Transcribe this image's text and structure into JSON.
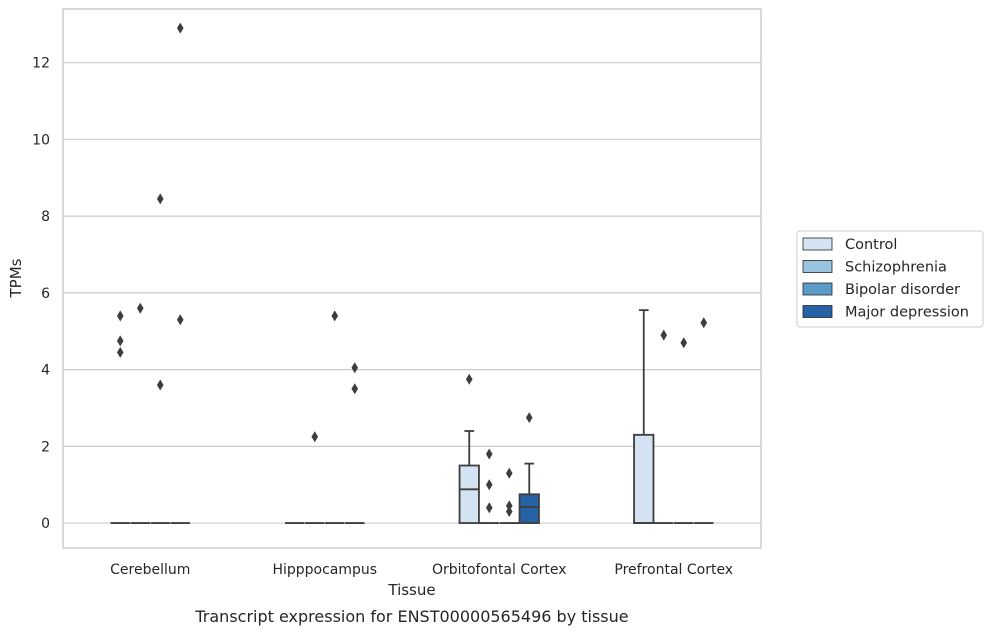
{
  "caption": "Transcript expression for ENST00000565496 by tissue",
  "chart_data": {
    "type": "box",
    "xlabel": "Tissue",
    "ylabel": "TPMs",
    "ylim": [
      -0.65,
      13.4
    ],
    "yticks": [
      0,
      2,
      4,
      6,
      8,
      10,
      12
    ],
    "grid": "horizontal",
    "legend_position": "outside-right",
    "categories": [
      "Cerebellum",
      "Hipppocampus",
      "Orbitofontal Cortex",
      "Prefrontal Cortex"
    ],
    "series": [
      {
        "name": "Control",
        "color": "#d4e3f1"
      },
      {
        "name": "Schizophrenia",
        "color": "#9ac3de"
      },
      {
        "name": "Bipolar disorder",
        "color": "#5a9bc8"
      },
      {
        "name": "Major depression",
        "color": "#2563a6"
      }
    ],
    "boxes": [
      {
        "category": "Cerebellum",
        "series": "Control",
        "q1": 0,
        "median": 0,
        "q3": 0,
        "whislo": 0,
        "whishi": 0,
        "fliers": [
          5.4,
          4.75,
          4.45
        ]
      },
      {
        "category": "Cerebellum",
        "series": "Schizophrenia",
        "q1": 0,
        "median": 0,
        "q3": 0,
        "whislo": 0,
        "whishi": 0,
        "fliers": [
          5.6
        ]
      },
      {
        "category": "Cerebellum",
        "series": "Bipolar disorder",
        "q1": 0,
        "median": 0,
        "q3": 0,
        "whislo": 0,
        "whishi": 0,
        "fliers": [
          8.45,
          3.6
        ]
      },
      {
        "category": "Cerebellum",
        "series": "Major depression",
        "q1": 0,
        "median": 0,
        "q3": 0,
        "whislo": 0,
        "whishi": 0,
        "fliers": [
          12.9,
          5.3
        ]
      },
      {
        "category": "Hipppocampus",
        "series": "Control",
        "q1": 0,
        "median": 0,
        "q3": 0,
        "whislo": 0,
        "whishi": 0,
        "fliers": []
      },
      {
        "category": "Hipppocampus",
        "series": "Schizophrenia",
        "q1": 0,
        "median": 0,
        "q3": 0,
        "whislo": 0,
        "whishi": 0,
        "fliers": [
          2.25
        ]
      },
      {
        "category": "Hipppocampus",
        "series": "Bipolar disorder",
        "q1": 0,
        "median": 0,
        "q3": 0,
        "whislo": 0,
        "whishi": 0,
        "fliers": [
          5.4
        ]
      },
      {
        "category": "Hipppocampus",
        "series": "Major depression",
        "q1": 0,
        "median": 0,
        "q3": 0,
        "whislo": 0,
        "whishi": 0,
        "fliers": [
          4.05,
          3.5
        ]
      },
      {
        "category": "Orbitofontal Cortex",
        "series": "Control",
        "q1": 0,
        "median": 0.88,
        "q3": 1.5,
        "whislo": 0,
        "whishi": 2.4,
        "fliers": [
          3.75
        ]
      },
      {
        "category": "Orbitofontal Cortex",
        "series": "Schizophrenia",
        "q1": 0,
        "median": 0,
        "q3": 0,
        "whislo": 0,
        "whishi": 0,
        "fliers": [
          1.8,
          1.0,
          0.4
        ]
      },
      {
        "category": "Orbitofontal Cortex",
        "series": "Bipolar disorder",
        "q1": 0,
        "median": 0,
        "q3": 0,
        "whislo": 0,
        "whishi": 0,
        "fliers": [
          1.3,
          0.45,
          0.3
        ]
      },
      {
        "category": "Orbitofontal Cortex",
        "series": "Major depression",
        "q1": 0,
        "median": 0.42,
        "q3": 0.75,
        "whislo": 0,
        "whishi": 1.55,
        "fliers": [
          2.75
        ]
      },
      {
        "category": "Prefrontal Cortex",
        "series": "Control",
        "q1": 0,
        "median": 0,
        "q3": 2.3,
        "whislo": 0,
        "whishi": 5.55,
        "fliers": []
      },
      {
        "category": "Prefrontal Cortex",
        "series": "Schizophrenia",
        "q1": 0,
        "median": 0,
        "q3": 0,
        "whislo": 0,
        "whishi": 0,
        "fliers": [
          4.9
        ]
      },
      {
        "category": "Prefrontal Cortex",
        "series": "Bipolar disorder",
        "q1": 0,
        "median": 0,
        "q3": 0,
        "whislo": 0,
        "whishi": 0,
        "fliers": [
          4.7
        ]
      },
      {
        "category": "Prefrontal Cortex",
        "series": "Major depression",
        "q1": 0,
        "median": 0,
        "q3": 0,
        "whislo": 0,
        "whishi": 0,
        "fliers": [
          5.22
        ]
      }
    ]
  }
}
